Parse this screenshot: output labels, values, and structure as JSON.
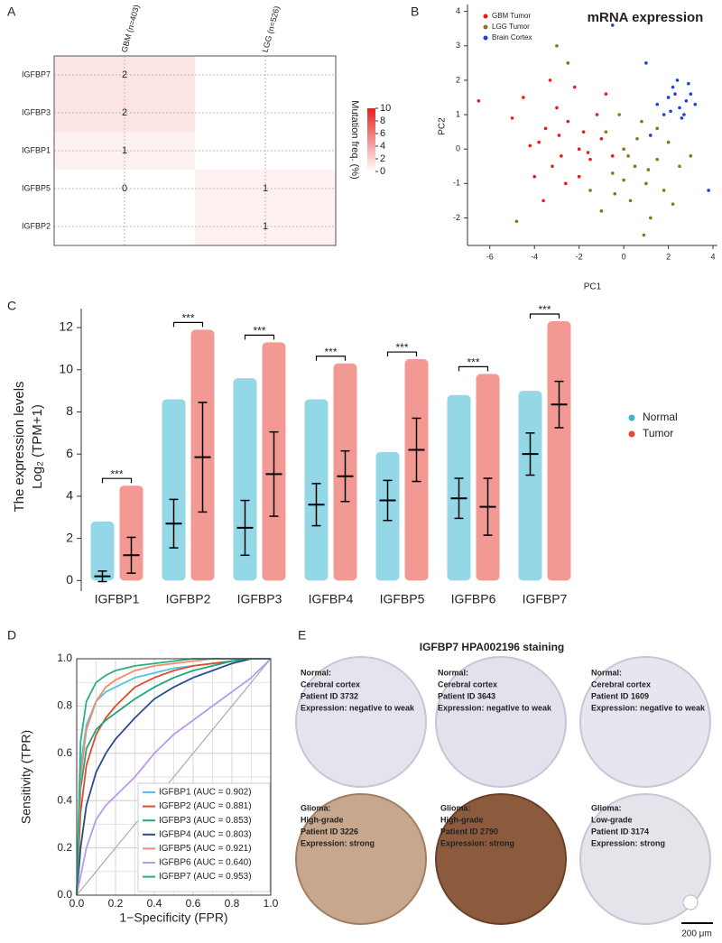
{
  "panel_labels": [
    "A",
    "B",
    "C",
    "D",
    "E"
  ],
  "chart_data": [
    {
      "type": "heatmap",
      "categories": [
        "IGFBP7",
        "IGFBP3",
        "IGFBP1",
        "IGFBP5",
        "IGFBP2"
      ],
      "series": [
        {
          "name": "GBM (n=403)",
          "values": [
            2,
            2,
            1,
            0,
            null
          ]
        },
        {
          "name": "LGG (n=526)",
          "values": [
            null,
            null,
            null,
            1,
            1
          ]
        }
      ],
      "color": "#E3241B",
      "colorbar": {
        "label": "Mutation freq. (%)",
        "lim": [
          0,
          10
        ],
        "ticks": [
          0,
          2,
          4,
          6,
          8,
          10
        ]
      }
    },
    {
      "type": "scatter",
      "title": "mRNA expression",
      "xlabel": "PC1",
      "ylabel": "PC2",
      "xlim": [
        -7,
        4.2
      ],
      "ylim": [
        -2.8,
        4.2
      ],
      "xticks": [
        -6,
        -4,
        -2,
        0,
        2,
        4
      ],
      "yticks": [
        -2,
        -1,
        0,
        1,
        2,
        3,
        4
      ],
      "legend": "top-left",
      "series": [
        {
          "name": "GBM Tumor",
          "color": "#E8191B",
          "x": [
            -4.5,
            -3.8,
            -3.2,
            -2.5,
            -2.0,
            -1.5,
            -3.0,
            -4.0,
            -2.8,
            -1.8,
            -2.2,
            -3.5,
            -1.0,
            -2.6,
            -5.0,
            -0.5,
            -3.3,
            -4.2,
            -1.2,
            -2.0,
            -6.5,
            -3.6,
            -1.6,
            -2.9,
            -0.8
          ],
          "values": [
            1.5,
            0.2,
            -0.5,
            0.8,
            0.0,
            -0.3,
            1.2,
            -0.8,
            -0.2,
            0.5,
            1.8,
            0.6,
            0.3,
            -1.0,
            0.9,
            -0.2,
            2.0,
            0.1,
            1.0,
            -0.8,
            1.4,
            -1.5,
            -0.1,
            0.4,
            1.6
          ]
        },
        {
          "name": "LGG Tumor",
          "color": "#8A7417",
          "x": [
            0.5,
            1.0,
            0.0,
            1.5,
            0.3,
            -0.5,
            2.0,
            0.8,
            -1.0,
            1.2,
            0.0,
            2.5,
            -0.2,
            1.8,
            0.6,
            -1.5,
            3.0,
            0.9,
            -0.8,
            1.5,
            -2.5,
            -4.8,
            0.2,
            1.1,
            2.2,
            -0.4,
            -3.0
          ],
          "values": [
            -0.5,
            -1.0,
            0.0,
            -0.3,
            -1.5,
            -0.7,
            0.2,
            0.8,
            -1.8,
            -2.0,
            -0.9,
            -0.5,
            1.0,
            -1.2,
            0.3,
            -1.2,
            -0.2,
            -2.5,
            0.5,
            0.6,
            2.5,
            -2.1,
            -0.2,
            -0.6,
            -1.6,
            -1.3,
            3.0
          ]
        },
        {
          "name": "Brain Cortex",
          "color": "#1E3FE0",
          "x": [
            2.0,
            2.5,
            2.2,
            2.8,
            1.8,
            3.0,
            2.4,
            1.5,
            2.6,
            2.9,
            2.1,
            1.0,
            3.2,
            2.3,
            1.2,
            3.8,
            -0.5,
            2.7
          ],
          "values": [
            1.5,
            1.2,
            1.8,
            1.4,
            1.0,
            1.6,
            2.0,
            1.3,
            0.9,
            1.9,
            1.1,
            2.5,
            1.3,
            1.6,
            0.4,
            -1.2,
            3.6,
            1.0
          ]
        }
      ]
    },
    {
      "type": "strip",
      "ylabel": "The expression levels",
      "ylabel_unit": "Log₂ (TPM+1)",
      "categories": [
        "IGFBP1",
        "IGFBP2",
        "IGFBP3",
        "IGFBP4",
        "IGFBP5",
        "IGFBP6",
        "IGFBP7"
      ],
      "ylim": [
        -0.5,
        12.9
      ],
      "yticks": [
        0,
        2,
        4,
        6,
        8,
        10,
        12
      ],
      "annotations": [
        "***",
        "***",
        "***",
        "***",
        "***",
        "***",
        "***"
      ],
      "legend": "right",
      "series": [
        {
          "name": "Normal",
          "color": "#3DB7D2",
          "values": [
            0.2,
            2.7,
            2.5,
            3.6,
            3.8,
            3.9,
            6.0
          ],
          "errors": [
            0.25,
            1.15,
            1.3,
            1.0,
            0.95,
            0.95,
            1.0
          ],
          "min": [
            0,
            0,
            0,
            0,
            0,
            0,
            0
          ],
          "max": [
            2.8,
            8.6,
            9.6,
            8.6,
            6.1,
            8.8,
            9.0
          ]
        },
        {
          "name": "Tumor",
          "color": "#E8463A",
          "values": [
            1.2,
            5.85,
            5.05,
            4.95,
            6.2,
            3.5,
            8.35
          ],
          "errors": [
            0.85,
            2.6,
            2.0,
            1.2,
            1.5,
            1.35,
            1.1
          ],
          "min": [
            0,
            0,
            0,
            0,
            0,
            0,
            0
          ],
          "max": [
            4.5,
            11.9,
            11.3,
            10.3,
            10.5,
            9.8,
            12.3
          ]
        }
      ]
    },
    {
      "type": "roc",
      "xlabel": "1−Specificity (FPR)",
      "ylabel": "Sensitivity (TPR)",
      "xlim": [
        0,
        1
      ],
      "ylim": [
        0,
        1
      ],
      "xticks": [
        {
          "value": 0,
          "label": "0.0"
        },
        {
          "value": 0.2,
          "label": "0.2"
        },
        {
          "value": 0.4,
          "label": "0.4"
        },
        {
          "value": 0.6,
          "label": "0.6"
        },
        {
          "value": 0.8,
          "label": "0.8"
        },
        {
          "value": 1,
          "label": "1.0"
        }
      ],
      "yticks": [
        {
          "value": 0,
          "label": "0.0"
        },
        {
          "value": 0.2,
          "label": "0.2"
        },
        {
          "value": 0.4,
          "label": "0.4"
        },
        {
          "value": 0.6,
          "label": "0.6"
        },
        {
          "value": 0.8,
          "label": "0.8"
        },
        {
          "value": 1,
          "label": "1.0"
        }
      ],
      "legend": "bottom-right",
      "x": [
        0,
        0.02,
        0.05,
        0.1,
        0.15,
        0.2,
        0.3,
        0.4,
        0.5,
        0.6,
        0.7,
        0.8,
        0.9,
        1
      ],
      "series": [
        {
          "name": "IGFBP1 (AUC = 0.902)",
          "color": "#4FC3E8",
          "values": [
            0,
            0.55,
            0.72,
            0.82,
            0.86,
            0.88,
            0.92,
            0.94,
            0.96,
            0.97,
            0.98,
            0.99,
            1,
            1
          ]
        },
        {
          "name": "IGFBP2 (AUC = 0.881)",
          "color": "#E24A2B",
          "values": [
            0,
            0.35,
            0.55,
            0.68,
            0.75,
            0.8,
            0.88,
            0.92,
            0.95,
            0.97,
            0.98,
            0.99,
            1,
            1
          ]
        },
        {
          "name": "IGFBP3 (AUC = 0.853)",
          "color": "#1FA67E",
          "values": [
            0,
            0.45,
            0.62,
            0.7,
            0.74,
            0.77,
            0.83,
            0.88,
            0.92,
            0.95,
            0.97,
            0.99,
            1,
            1
          ]
        },
        {
          "name": "IGFBP4 (AUC = 0.803)",
          "color": "#2A4B8D",
          "values": [
            0,
            0.2,
            0.38,
            0.52,
            0.6,
            0.66,
            0.75,
            0.83,
            0.88,
            0.92,
            0.95,
            0.98,
            1,
            1
          ]
        },
        {
          "name": "IGFBP5 (AUC = 0.921)",
          "color": "#F08C6C",
          "values": [
            0,
            0.5,
            0.7,
            0.82,
            0.88,
            0.91,
            0.95,
            0.97,
            0.98,
            0.99,
            1,
            1,
            1,
            1
          ]
        },
        {
          "name": "IGFBP6 (AUC = 0.640)",
          "color": "#B79BEA",
          "values": [
            0,
            0.08,
            0.2,
            0.32,
            0.38,
            0.42,
            0.5,
            0.6,
            0.68,
            0.74,
            0.8,
            0.86,
            0.92,
            1
          ]
        },
        {
          "name": "IGFBP7 (AUC = 0.953)",
          "color": "#2BAE86",
          "values": [
            0,
            0.65,
            0.82,
            0.9,
            0.93,
            0.95,
            0.97,
            0.98,
            0.99,
            1,
            1,
            1,
            1,
            1
          ]
        }
      ]
    }
  ],
  "panel_e": {
    "title": "IGFBP7 HPA002196 staining",
    "tiles": [
      {
        "lines": [
          "Normal:",
          "Cerebral cortex",
          "Patient ID 3732",
          "Expression: negative to weak"
        ]
      },
      {
        "lines": [
          "Normal:",
          "Cerebral cortex",
          "Patient ID 3643",
          "Expression: negative to weak"
        ]
      },
      {
        "lines": [
          "Normal:",
          "Cerebral cortex",
          "Patient ID 1609",
          "Expression: negative to weak"
        ]
      },
      {
        "lines": [
          "Glioma:",
          "High-grade",
          "Patient ID 3226",
          "Expression: strong"
        ]
      },
      {
        "lines": [
          "Glioma:",
          "High-grade",
          "Patient ID 2790",
          "Expression: strong"
        ]
      },
      {
        "lines": [
          "Glioma:",
          "Low-grade",
          "Patient ID 3174",
          "Expression: strong"
        ]
      }
    ],
    "scale_bar": "200 μm"
  }
}
